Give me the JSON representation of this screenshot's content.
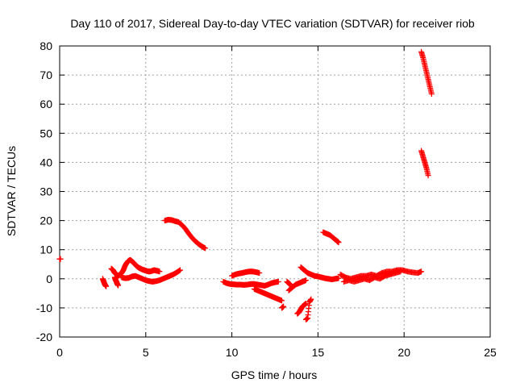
{
  "chart_data": {
    "type": "scatter",
    "title": "Day 110 of 2017, Sidereal Day-to-day VTEC variation (SDTVAR) for receiver riob",
    "xlabel": "GPS time / hours",
    "ylabel": "SDTVAR / TECUs",
    "xlim": [
      0,
      25
    ],
    "ylim": [
      -20,
      80
    ],
    "xticks": [
      0,
      5,
      10,
      15,
      20,
      25
    ],
    "yticks": [
      -20,
      -10,
      0,
      10,
      20,
      30,
      40,
      50,
      60,
      70,
      80
    ],
    "grid": true,
    "marker": "+",
    "colors": {
      "points": "#ff0000"
    },
    "segments": [
      {
        "x": [
          0.0,
          0.05
        ],
        "y": [
          6.8,
          6.8
        ]
      },
      {
        "x": [
          2.5,
          2.55,
          2.6,
          2.65,
          2.7
        ],
        "y": [
          0.0,
          -0.8,
          -1.6,
          -2.2,
          -2.6
        ]
      },
      {
        "x": [
          3.0,
          3.1,
          3.2,
          3.3,
          3.4,
          3.5,
          3.6,
          3.7,
          3.8,
          3.9,
          4.0,
          4.1,
          4.2,
          4.3,
          4.4,
          4.5,
          4.6,
          4.7,
          4.8,
          4.9,
          5.0,
          5.1,
          5.2,
          5.3,
          5.4,
          5.5,
          5.6,
          5.7,
          5.8
        ],
        "y": [
          3.5,
          3.0,
          2.0,
          1.5,
          1.0,
          1.5,
          2.0,
          3.0,
          4.5,
          5.5,
          6.2,
          6.5,
          6.0,
          5.5,
          4.8,
          4.2,
          3.8,
          3.5,
          3.2,
          3.0,
          2.8,
          2.6,
          2.5,
          2.6,
          2.8,
          3.0,
          2.8,
          2.7,
          2.5
        ]
      },
      {
        "x": [
          3.2,
          3.25,
          3.3,
          3.35,
          3.4
        ],
        "y": [
          0.5,
          -0.5,
          -1.0,
          -1.8,
          -2.3
        ]
      },
      {
        "x": [
          3.6,
          3.8,
          4.0,
          4.2,
          4.4,
          4.6,
          4.8,
          5.0,
          5.2,
          5.4,
          5.6,
          5.8,
          6.0,
          6.2,
          6.4,
          6.6,
          6.8,
          7.0
        ],
        "y": [
          0.5,
          0.2,
          0.3,
          0.8,
          1.0,
          0.5,
          0.0,
          -0.5,
          -0.8,
          -1.0,
          -0.8,
          -0.5,
          0.0,
          0.5,
          1.0,
          1.5,
          2.2,
          3.0
        ]
      },
      {
        "x": [
          6.1,
          6.3,
          6.5,
          6.7,
          6.9,
          7.1,
          7.3,
          7.5,
          7.7,
          7.9,
          8.1,
          8.3,
          8.45
        ],
        "y": [
          20.0,
          20.3,
          20.2,
          19.8,
          19.5,
          18.5,
          17.2,
          15.5,
          14.0,
          12.8,
          11.8,
          11.0,
          10.5
        ]
      },
      {
        "x": [
          9.5,
          9.7,
          9.9,
          10.1,
          10.3,
          10.5,
          10.7,
          10.9,
          11.1,
          11.3,
          11.5,
          11.7,
          11.9,
          12.1,
          12.3,
          12.5,
          12.7
        ],
        "y": [
          -1.0,
          -1.5,
          -1.8,
          -1.9,
          -2.0,
          -2.0,
          -2.1,
          -2.0,
          -1.8,
          -1.8,
          -2.0,
          -2.2,
          -2.4,
          -2.0,
          -1.5,
          -1.2,
          -1.0
        ]
      },
      {
        "x": [
          10.0,
          10.2,
          10.4,
          10.6,
          10.8,
          11.0,
          11.2,
          11.4,
          11.6
        ],
        "y": [
          1.0,
          1.5,
          1.8,
          2.0,
          2.3,
          2.5,
          2.5,
          2.3,
          2.0
        ]
      },
      {
        "x": [
          11.3,
          11.5,
          11.7,
          11.9,
          12.1,
          12.3,
          12.5,
          12.7,
          12.9
        ],
        "y": [
          -3.5,
          -4.0,
          -4.5,
          -5.0,
          -5.5,
          -6.0,
          -6.5,
          -7.0,
          -7.5
        ]
      },
      {
        "x": [
          12.9,
          13.0
        ],
        "y": [
          -10.0,
          -9.5
        ]
      },
      {
        "x": [
          13.2,
          13.3,
          13.4
        ],
        "y": [
          -1.0,
          -1.5,
          -2.0
        ]
      },
      {
        "x": [
          13.3,
          13.5,
          13.7,
          13.9,
          14.1,
          14.3
        ],
        "y": [
          -4.0,
          -3.0,
          -2.0,
          -1.5,
          -1.0,
          -0.5
        ]
      },
      {
        "x": [
          13.8,
          13.9,
          14.0,
          14.1,
          14.2,
          14.3
        ],
        "y": [
          -12.0,
          -11.5,
          -10.5,
          -9.5,
          -9.0,
          -8.5
        ]
      },
      {
        "x": [
          14.3,
          14.4,
          14.5,
          14.6
        ],
        "y": [
          -14.0,
          -13.5,
          -8.0,
          -7.0
        ]
      },
      {
        "x": [
          14.0,
          14.2,
          14.4,
          14.6,
          14.8,
          15.0,
          15.2,
          15.4,
          15.6,
          15.8,
          16.0,
          16.2
        ],
        "y": [
          4.0,
          3.0,
          2.0,
          1.5,
          1.0,
          0.8,
          0.5,
          0.2,
          0.0,
          -0.2,
          0.0,
          0.2
        ]
      },
      {
        "x": [
          15.3,
          15.5,
          15.7,
          15.9,
          16.1,
          16.2
        ],
        "y": [
          16.0,
          15.5,
          15.0,
          14.0,
          13.0,
          12.5
        ]
      },
      {
        "x": [
          16.3,
          16.6,
          16.9,
          17.2,
          17.5,
          17.8,
          18.1,
          18.4,
          18.7,
          19.0,
          19.3,
          19.6,
          19.9,
          20.2,
          20.5,
          20.8,
          21.0
        ],
        "y": [
          1.5,
          0.5,
          0.0,
          0.5,
          1.0,
          1.0,
          1.5,
          1.0,
          2.0,
          2.5,
          2.5,
          3.0,
          3.0,
          2.5,
          2.2,
          2.0,
          2.5
        ]
      },
      {
        "x": [
          16.5,
          16.8,
          17.1,
          17.4,
          17.7,
          18.0,
          18.3,
          18.6,
          18.9,
          19.2,
          19.5,
          19.8
        ],
        "y": [
          -1.0,
          -0.5,
          -1.0,
          -0.5,
          0.0,
          -0.5,
          0.5,
          0.0,
          1.0,
          1.5,
          2.0,
          2.5
        ]
      },
      {
        "x": [
          21.0,
          21.1,
          21.2,
          21.3,
          21.4,
          21.5,
          21.6
        ],
        "y": [
          78.0,
          76.0,
          73.5,
          71.0,
          68.5,
          66.0,
          63.5
        ]
      },
      {
        "x": [
          21.0,
          21.1,
          21.2,
          21.3,
          21.4
        ],
        "y": [
          44.0,
          42.0,
          40.0,
          38.0,
          35.5
        ]
      }
    ]
  }
}
